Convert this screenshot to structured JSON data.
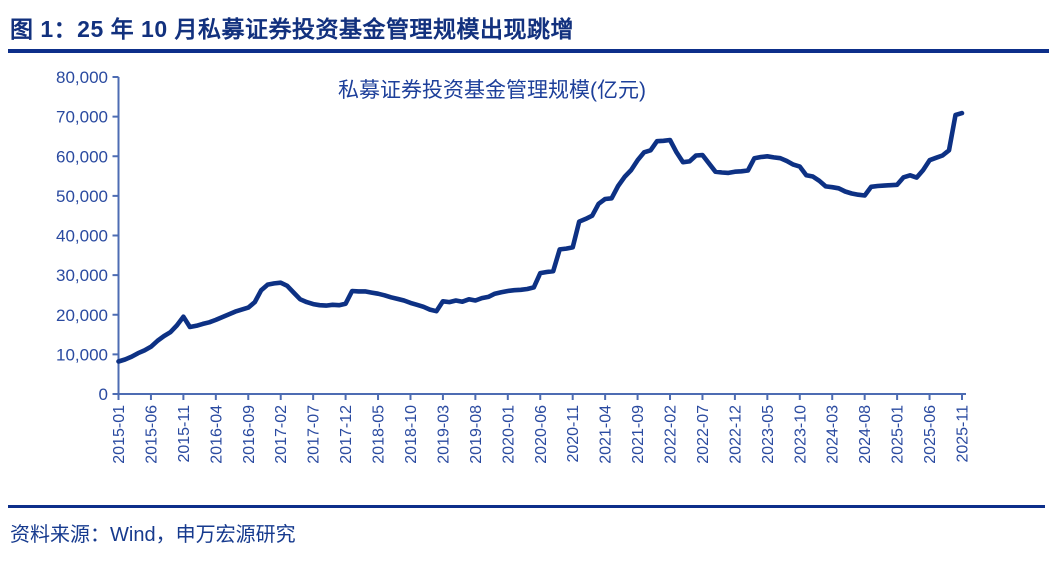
{
  "header": {
    "title": "图 1：25 年 10 月私募证券投资基金管理规模出现跳增"
  },
  "footer": {
    "source": "资料来源：Wind，申万宏源研究"
  },
  "colors": {
    "line": "#0d3184",
    "axis": "#4d6cb3",
    "tick_label": "#2a4aa0",
    "title_text": "#12317e",
    "rule": "#0d2f8a"
  },
  "chart_data": {
    "type": "line",
    "title": "私募证券投资基金管理规模(亿元)",
    "xlabel": "",
    "ylabel": "",
    "grid": false,
    "legend_position": "none",
    "ylim": [
      0,
      80000
    ],
    "y_tick_step": 10000,
    "y_tick_labels": [
      "0",
      "10,000",
      "20,000",
      "30,000",
      "40,000",
      "50,000",
      "60,000",
      "70,000",
      "80,000"
    ],
    "start_month": "2015-01",
    "end_month": "2025-11",
    "x_tick_interval": 5,
    "x_tick_labels": [
      "2015-01",
      "2015-06",
      "2015-11",
      "2016-04",
      "2016-09",
      "2017-02",
      "2017-07",
      "2017-12",
      "2018-05",
      "2018-10",
      "2019-03",
      "2019-08",
      "2020-01",
      "2020-06",
      "2020-11",
      "2021-04",
      "2021-09",
      "2022-02",
      "2022-07",
      "2022-12",
      "2023-05",
      "2023-10",
      "2024-03",
      "2024-08",
      "2025-01",
      "2025-06",
      "2025-11"
    ],
    "series": [
      {
        "name": "私募证券投资基金管理规模(亿元)",
        "values": [
          8200,
          8700,
          9400,
          10300,
          11000,
          11900,
          13400,
          14600,
          15600,
          17300,
          19500,
          16900,
          17200,
          17700,
          18100,
          18700,
          19400,
          20100,
          20800,
          21300,
          21800,
          23200,
          26200,
          27600,
          27900,
          28100,
          27300,
          25600,
          23900,
          23200,
          22700,
          22400,
          22300,
          22500,
          22400,
          22800,
          26000,
          25900,
          25900,
          25600,
          25300,
          24900,
          24400,
          24000,
          23600,
          23000,
          22500,
          22000,
          21300,
          20900,
          23400,
          23200,
          23600,
          23300,
          23900,
          23600,
          24200,
          24500,
          25300,
          25700,
          26000,
          26200,
          26300,
          26500,
          26900,
          30500,
          30800,
          31000,
          36500,
          36700,
          37000,
          43500,
          44200,
          45000,
          48000,
          49200,
          49400,
          52500,
          54800,
          56500,
          59000,
          61000,
          61500,
          63800,
          63900,
          64100,
          61000,
          58500,
          58700,
          60200,
          60300,
          58200,
          56100,
          55900,
          55800,
          56100,
          56200,
          56400,
          59500,
          59800,
          60000,
          59700,
          59500,
          58800,
          57900,
          57400,
          55200,
          54900,
          53800,
          52400,
          52200,
          51900,
          51100,
          50600,
          50300,
          50100,
          52300,
          52500,
          52600,
          52700,
          52800,
          54700,
          55200,
          54600,
          56500,
          59000,
          59600,
          60200,
          61500,
          70400,
          70900
        ]
      }
    ]
  }
}
